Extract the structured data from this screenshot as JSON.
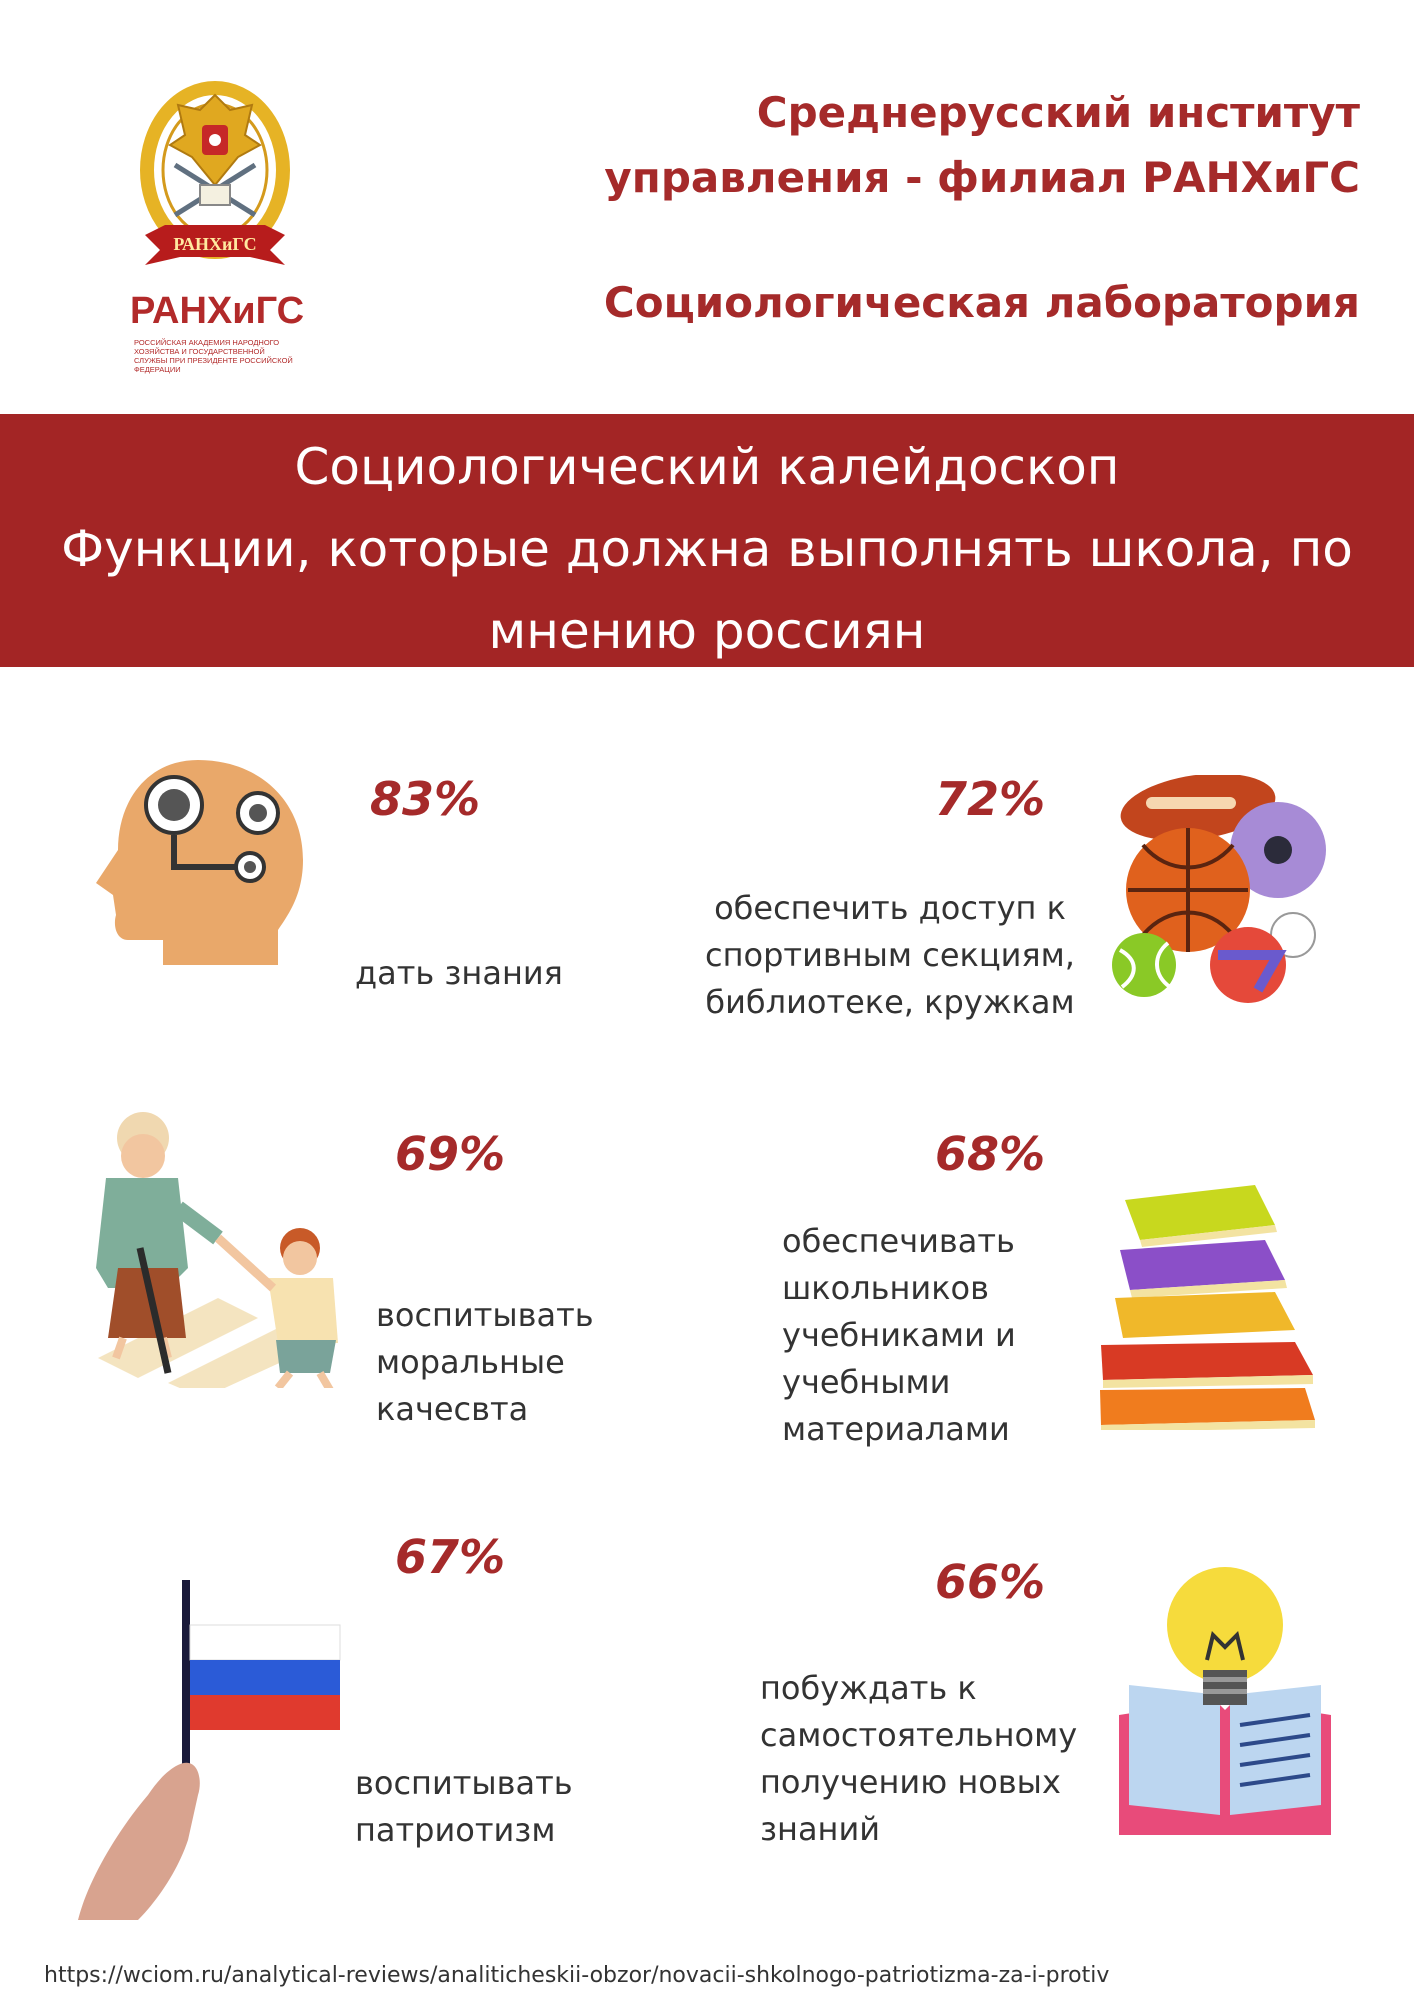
{
  "header": {
    "brand_logo_text": "РАНХиГС",
    "brand_wordmark": "РАНХиГС",
    "brand_subtitle": "Российская академия народного хозяйства и государственной службы при Президенте Российской Федерации",
    "institute_line1": "Среднерусский институт",
    "institute_line2": "управления - филиал РАНХиГС",
    "lab": "Социологическая лаборатория"
  },
  "banner": {
    "line1": "Социологический калейдоскоп",
    "line2": "Функции, которые должна выполнять школа, по",
    "line3": "мнению россиян"
  },
  "items": [
    {
      "percent": "83%",
      "lines": [
        "дать знания"
      ],
      "icon": "head-gears-icon"
    },
    {
      "percent": "72%",
      "lines": [
        "обеспечить  доступ к",
        "спортивным секциям,",
        "библиотеке, кружкам"
      ],
      "icon": "sports-balls-icon"
    },
    {
      "percent": "69%",
      "lines": [
        "воспитывать",
        "моральные",
        "качесвта"
      ],
      "icon": "grandmother-child-icon"
    },
    {
      "percent": "68%",
      "lines": [
        "обеспечивать",
        "школьников",
        "учебниками и",
        "учебными",
        "материалами"
      ],
      "icon": "books-stack-icon"
    },
    {
      "percent": "67%",
      "lines": [
        "воспитывать",
        "патриотизм"
      ],
      "icon": "russian-flag-icon"
    },
    {
      "percent": "66%",
      "lines": [
        "побуждать к",
        "самостоятельному",
        "получению новых",
        "знаний"
      ],
      "icon": "lightbulb-book-icon"
    }
  ],
  "source": "https://wciom.ru/analytical-reviews/analiticheskii-obzor/novacii-shkolnogo-patriotizma-za-i-protiv",
  "colors": {
    "accent": "#a32525",
    "text": "#333333",
    "background": "#ffffff"
  }
}
